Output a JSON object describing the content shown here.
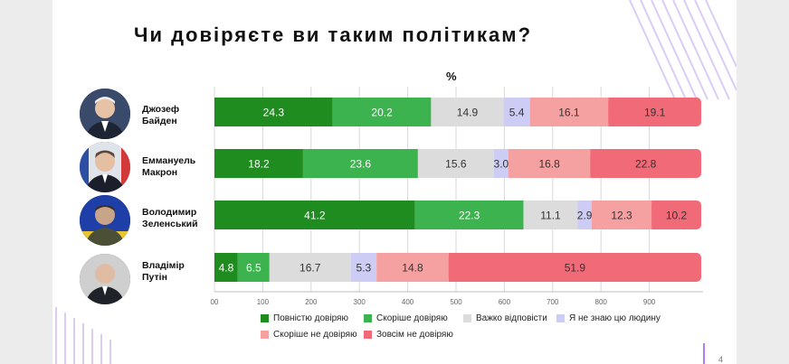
{
  "title": "Чи довіряєте ви таким політикам?",
  "unit": "%",
  "page_number": "4",
  "colors": {
    "fully_trust": "#1e8c1e",
    "rather_trust": "#3cb34e",
    "hard_to_say": "#dcdcdc",
    "dont_know": "#ccccf4",
    "rather_not_trust": "#f6a1a1",
    "not_trust_at_all": "#f06a78",
    "accent": "#b07cf0"
  },
  "chart_data": {
    "type": "bar",
    "orientation": "horizontal",
    "stacked": true,
    "categories": [
      "Джозеф\nБайден",
      "Еммануель\nМакрон",
      "Володимир\nЗеленський",
      "Владімір\nПутін"
    ],
    "series": [
      {
        "name": "Повністю довіряю",
        "values": [
          24.3,
          18.2,
          41.2,
          4.8
        ]
      },
      {
        "name": "Скоріше довіряю",
        "values": [
          20.2,
          23.6,
          22.3,
          6.5
        ]
      },
      {
        "name": "Важко відповісти",
        "values": [
          14.9,
          15.6,
          11.1,
          16.7
        ]
      },
      {
        "name": "Я не знаю цю людину",
        "values": [
          5.4,
          3.0,
          2.9,
          5.3
        ]
      },
      {
        "name": "Скоріше не довіряю",
        "values": [
          16.1,
          16.8,
          12.3,
          14.8
        ]
      },
      {
        "name": "Зовсім не довіряю",
        "values": [
          19.1,
          22.8,
          10.2,
          51.9
        ]
      }
    ],
    "xticks": [
      "00",
      "100",
      "200",
      "300",
      "400",
      "500",
      "600",
      "700",
      "800",
      "900"
    ],
    "xlim": [
      0,
      100
    ],
    "grid": true,
    "legend_position": "bottom"
  }
}
